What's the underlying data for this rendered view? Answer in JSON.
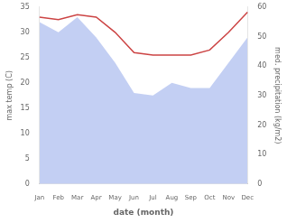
{
  "chart_data": {
    "type": "line",
    "xlabel": "date (month)",
    "ylabel": "max temp (C)",
    "y2label": "med. precipitation (kg/m2)",
    "categories": [
      "Jan",
      "Feb",
      "Mar",
      "Apr",
      "May",
      "Jun",
      "Jul",
      "Aug",
      "Sep",
      "Oct",
      "Nov",
      "Dec"
    ],
    "series": [
      {
        "type": "area",
        "color": "#aabbee",
        "values": [
          32.0,
          30.0,
          33.0,
          29.0,
          24.0,
          18.0,
          17.5,
          20.0,
          19.0,
          19.0,
          24.0,
          29.0
        ]
      },
      {
        "type": "line",
        "color": "#cc4444",
        "values": [
          33.0,
          32.5,
          33.5,
          33.0,
          30.0,
          26.0,
          25.5,
          25.5,
          25.5,
          26.5,
          30.0,
          34.0
        ]
      }
    ],
    "ylim": [
      0,
      35
    ],
    "yticks": [
      0,
      5,
      10,
      15,
      20,
      25,
      30,
      35
    ],
    "y2lim": [
      0,
      60
    ],
    "y2ticks": [
      0,
      10,
      20,
      30,
      40,
      50,
      60
    ],
    "grid": false
  }
}
